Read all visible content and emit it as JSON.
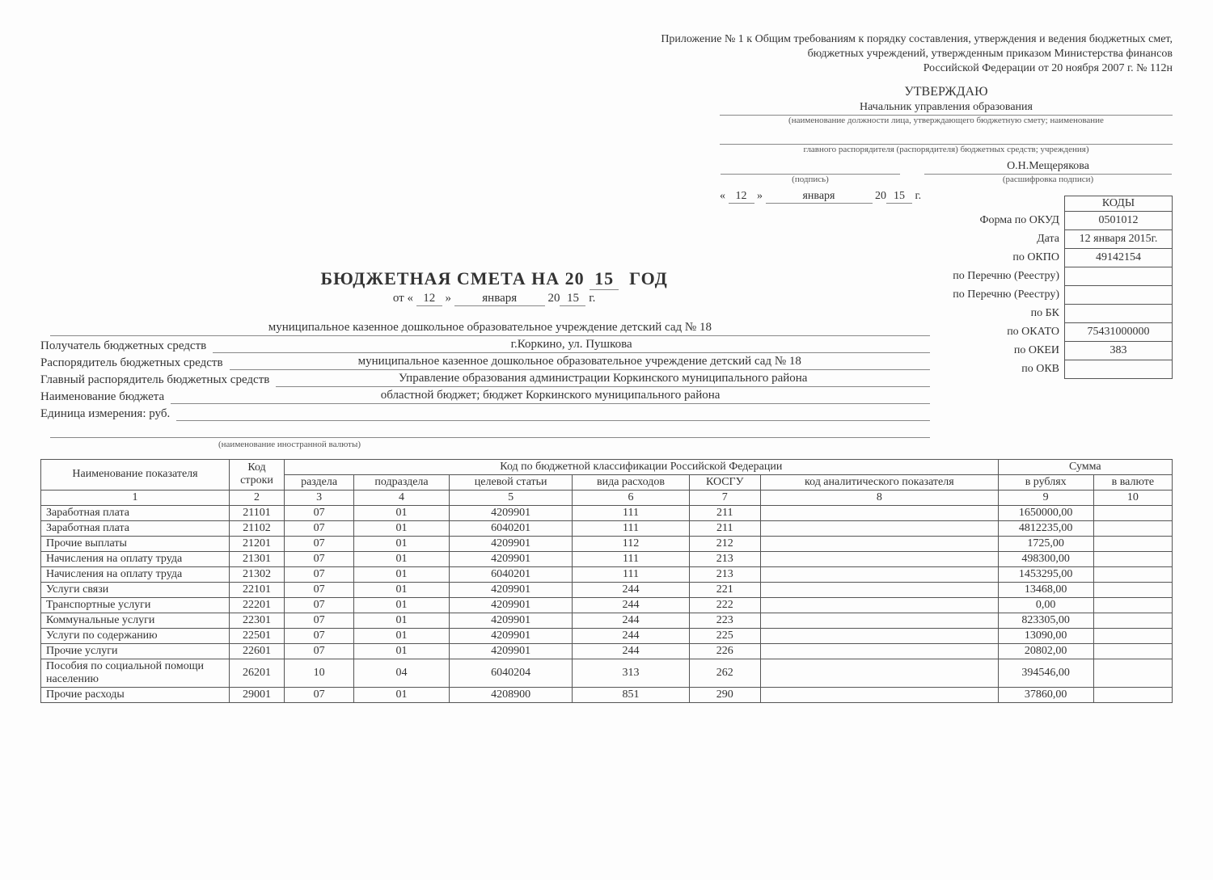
{
  "top_note": {
    "l1": "Приложение № 1 к Общим требованиям к порядку составления, утверждения и ведения бюджетных смет,",
    "l2": "бюджетных учреждений, утвержденным приказом Министерства финансов",
    "l3": "Российской Федерации от 20 ноября 2007 г. № 112н"
  },
  "approve": {
    "utv": "УТВЕРЖДАЮ",
    "post": "Начальник управления образования",
    "post_sub": "(наименование должности лица, утверждающего бюджетную смету; наименование",
    "post_sub2": "главного распорядителя (распорядителя) бюджетных средств; учреждения)",
    "sign_label": "(подпись)",
    "name": "О.Н.Мещерякова",
    "name_sub": "(расшифровка подписи)",
    "day": "12",
    "month": "января",
    "year_prefix": "20",
    "year_suffix": "15",
    "year_tail": "г."
  },
  "title": {
    "main_pre": "БЮДЖЕТНАЯ СМЕТА НА 20",
    "year2": "15",
    "main_post": "ГОД",
    "from": "от «",
    "day": "12",
    "mid": "»",
    "month": "января",
    "y_pre": "20",
    "y_suf": "15",
    "y_tail": "г."
  },
  "codes": {
    "head": "КОДЫ",
    "rows": [
      {
        "lab": "Форма по ОКУД",
        "val": "0501012"
      },
      {
        "lab": "Дата",
        "val": "12 января 2015г."
      },
      {
        "lab": "по ОКПО",
        "val": "49142154"
      },
      {
        "lab": "по Перечню (Реестру)",
        "val": ""
      },
      {
        "lab": "по Перечню (Реестру)",
        "val": ""
      },
      {
        "lab": "по БК",
        "val": ""
      },
      {
        "lab": "по ОКАТО",
        "val": "75431000000"
      },
      {
        "lab": "по ОКЕИ",
        "val": "383"
      },
      {
        "lab": "по ОКВ",
        "val": ""
      }
    ]
  },
  "info": {
    "recipient_line1": "муниципальное казенное дошкольное образовательное учреждение детский сад № 18",
    "recipient_label": "Получатель бюджетных средств",
    "recipient_line2": "г.Коркино,  ул. Пушкова",
    "manager_label": "Распорядитель бюджетных средств",
    "manager_val": "муниципальное казенное дошкольное образовательное учреждение детский сад № 18",
    "chief_label": "Главный распорядитель бюджетных средств",
    "chief_val": "Управление образования администрации Коркинского муниципального района",
    "budget_label": "Наименование бюджета",
    "budget_val": "областной бюджет; бюджет Коркинского муниципального района",
    "unit_label": "Единица измерения: руб.",
    "foreign_note": "(наименование иностранной валюты)"
  },
  "table": {
    "h_name": "Наименование показателя",
    "h_code": "Код строки",
    "h_class": "Код по бюджетной классификации Российской Федерации",
    "h_sum": "Сумма",
    "h_razdel": "раздела",
    "h_podrazdel": "подраздела",
    "h_target": "целевой статьи",
    "h_vid": "вида расходов",
    "h_kosgu": "КОСГУ",
    "h_anal": "код аналитического показателя",
    "h_rub": "в рублях",
    "h_val": "в валюте",
    "nums": [
      "1",
      "2",
      "3",
      "4",
      "5",
      "6",
      "7",
      "8",
      "9",
      "10"
    ],
    "rows": [
      {
        "name": "Заработная плата",
        "code": "21101",
        "r": "07",
        "pr": "01",
        "ts": "4209901",
        "vr": "111",
        "k": "211",
        "a": "",
        "rub": "1650000,00",
        "v": ""
      },
      {
        "name": "Заработная плата",
        "code": "21102",
        "r": "07",
        "pr": "01",
        "ts": "6040201",
        "vr": "111",
        "k": "211",
        "a": "",
        "rub": "4812235,00",
        "v": ""
      },
      {
        "name": "Прочие выплаты",
        "code": "21201",
        "r": "07",
        "pr": "01",
        "ts": "4209901",
        "vr": "112",
        "k": "212",
        "a": "",
        "rub": "1725,00",
        "v": ""
      },
      {
        "name": "Начисления на оплату труда",
        "code": "21301",
        "r": "07",
        "pr": "01",
        "ts": "4209901",
        "vr": "111",
        "k": "213",
        "a": "",
        "rub": "498300,00",
        "v": ""
      },
      {
        "name": "Начисления на оплату труда",
        "code": "21302",
        "r": "07",
        "pr": "01",
        "ts": "6040201",
        "vr": "111",
        "k": "213",
        "a": "",
        "rub": "1453295,00",
        "v": ""
      },
      {
        "name": "Услуги связи",
        "code": "22101",
        "r": "07",
        "pr": "01",
        "ts": "4209901",
        "vr": "244",
        "k": "221",
        "a": "",
        "rub": "13468,00",
        "v": ""
      },
      {
        "name": "Транспортные услуги",
        "code": "22201",
        "r": "07",
        "pr": "01",
        "ts": "4209901",
        "vr": "244",
        "k": "222",
        "a": "",
        "rub": "0,00",
        "v": ""
      },
      {
        "name": "Коммунальные услуги",
        "code": "22301",
        "r": "07",
        "pr": "01",
        "ts": "4209901",
        "vr": "244",
        "k": "223",
        "a": "",
        "rub": "823305,00",
        "v": ""
      },
      {
        "name": "Услуги по содержанию",
        "code": "22501",
        "r": "07",
        "pr": "01",
        "ts": "4209901",
        "vr": "244",
        "k": "225",
        "a": "",
        "rub": "13090,00",
        "v": ""
      },
      {
        "name": "Прочие услуги",
        "code": "22601",
        "r": "07",
        "pr": "01",
        "ts": "4209901",
        "vr": "244",
        "k": "226",
        "a": "",
        "rub": "20802,00",
        "v": ""
      },
      {
        "name": "Пособия по социальной помощи населению",
        "code": "26201",
        "r": "10",
        "pr": "04",
        "ts": "6040204",
        "vr": "313",
        "k": "262",
        "a": "",
        "rub": "394546,00",
        "v": ""
      },
      {
        "name": "Прочие расходы",
        "code": "29001",
        "r": "07",
        "pr": "01",
        "ts": "4208900",
        "vr": "851",
        "k": "290",
        "a": "",
        "rub": "37860,00",
        "v": ""
      }
    ]
  }
}
